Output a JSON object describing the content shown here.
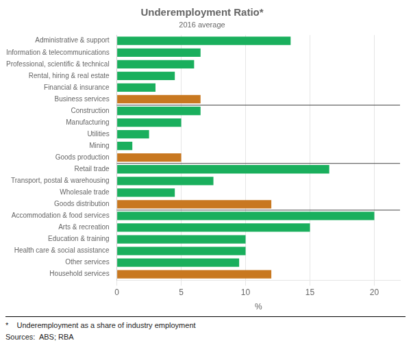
{
  "chart_data": {
    "type": "bar",
    "orientation": "horizontal",
    "title": "Underemployment Ratio*",
    "subtitle": "2016 average",
    "xlabel": "%",
    "footnote": "*    Underemployment as a share of industry employment",
    "sources": "Sources:  ABS; RBA",
    "categories": [
      "Administrative & support",
      "Information & telecommunications",
      "Professional, scientific & technical",
      "Rental, hiring & real estate",
      "Financial & insurance",
      "Business services",
      "Construction",
      "Manufacturing",
      "Utilities",
      "Mining",
      "Goods production",
      "Retail trade",
      "Transport, postal & warehousing",
      "Wholesale trade",
      "Goods distribution",
      "Accommodation & food services",
      "Arts & recreation",
      "Education & training",
      "Health care & social assistance",
      "Other services",
      "Household services"
    ],
    "values": [
      13.5,
      6.5,
      6.0,
      4.5,
      3.0,
      6.5,
      6.5,
      5.0,
      2.5,
      1.2,
      5.0,
      16.5,
      7.5,
      4.5,
      12.0,
      20.0,
      15.0,
      10.0,
      10.0,
      9.5,
      12.0
    ],
    "colors": [
      "#1aaf5d",
      "#1aaf5d",
      "#1aaf5d",
      "#1aaf5d",
      "#1aaf5d",
      "#c87820",
      "#1aaf5d",
      "#1aaf5d",
      "#1aaf5d",
      "#1aaf5d",
      "#c87820",
      "#1aaf5d",
      "#1aaf5d",
      "#1aaf5d",
      "#c87820",
      "#1aaf5d",
      "#1aaf5d",
      "#1aaf5d",
      "#1aaf5d",
      "#1aaf5d",
      "#c87820"
    ],
    "xlim": [
      0,
      22
    ],
    "xticks": [
      0,
      5,
      10,
      15,
      20
    ],
    "grid": true
  }
}
